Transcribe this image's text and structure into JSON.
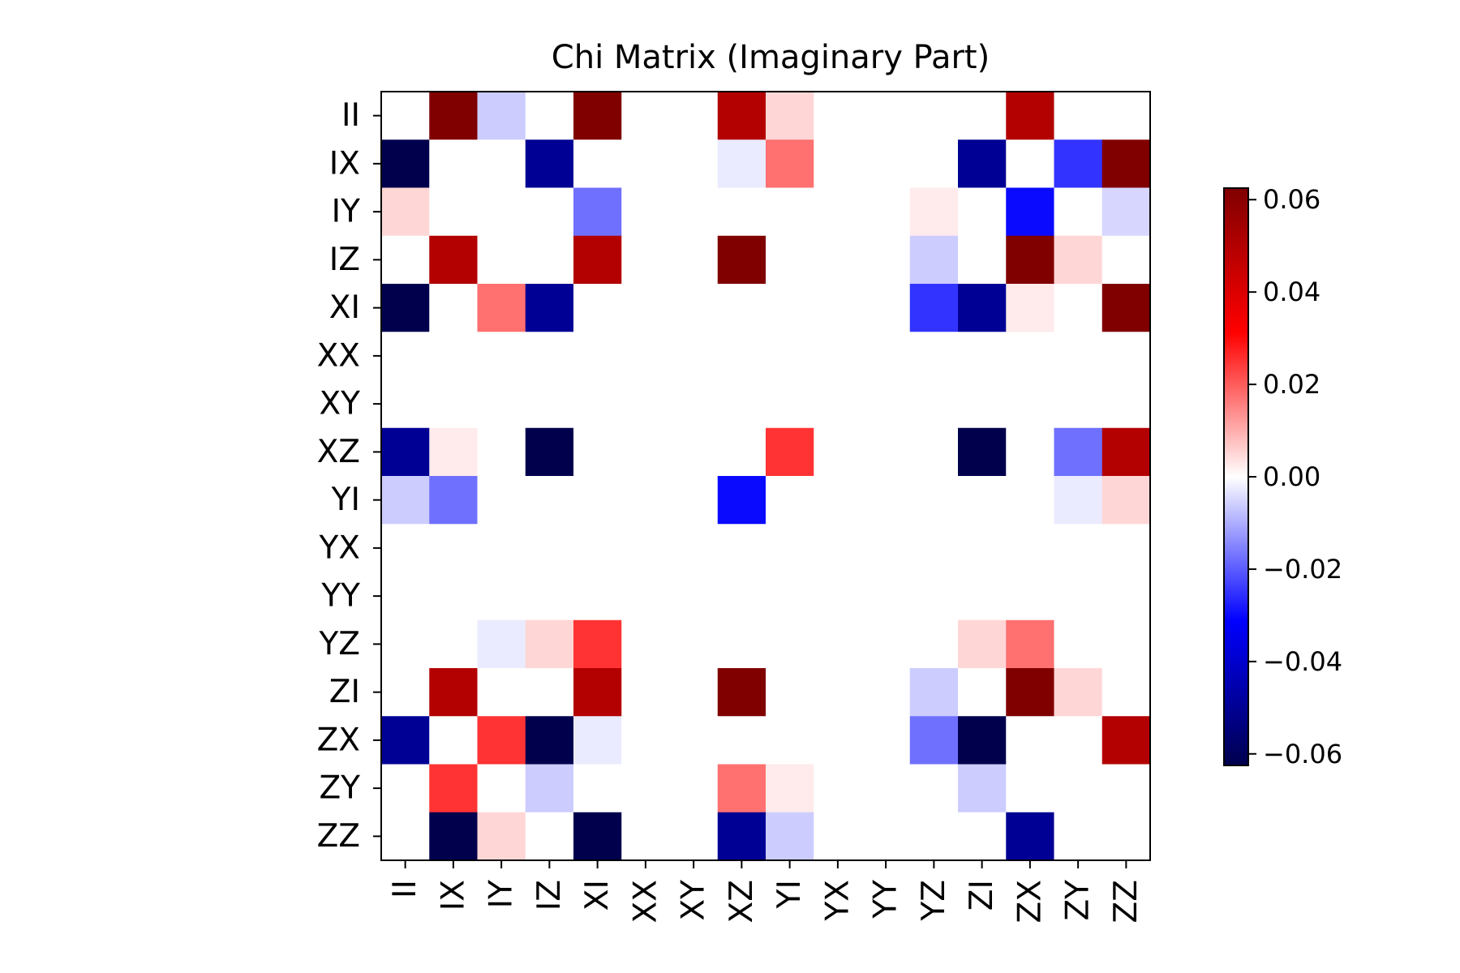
{
  "chart_data": {
    "type": "heatmap",
    "title": "Chi Matrix (Imaginary Part)",
    "xlabel": "",
    "ylabel": "",
    "rows": [
      "II",
      "IX",
      "IY",
      "IZ",
      "XI",
      "XX",
      "XY",
      "XZ",
      "YI",
      "YX",
      "YY",
      "YZ",
      "ZI",
      "ZX",
      "ZY",
      "ZZ"
    ],
    "columns": [
      "II",
      "IX",
      "IY",
      "IZ",
      "XI",
      "XX",
      "XY",
      "XZ",
      "YI",
      "YX",
      "YY",
      "YZ",
      "ZI",
      "ZX",
      "ZY",
      "ZZ"
    ],
    "values": [
      [
        0,
        0.0625,
        -0.0063,
        0,
        0.0625,
        0,
        0,
        0.05,
        0.005,
        0,
        0,
        0,
        0,
        0.05,
        0,
        0
      ],
      [
        -0.0625,
        0,
        0,
        -0.05,
        0,
        0,
        0,
        -0.0025,
        0.0175,
        0,
        0,
        0,
        -0.05,
        0,
        -0.025,
        0.0625
      ],
      [
        0.005,
        0,
        0,
        0,
        -0.0175,
        0,
        0,
        0,
        0,
        0,
        0,
        0.0025,
        0,
        -0.03,
        0,
        -0.005
      ],
      [
        0,
        0.05,
        0,
        0,
        0.05,
        0,
        0,
        0.0625,
        0,
        0,
        0,
        -0.0063,
        0,
        0.0625,
        0.005,
        0
      ],
      [
        -0.0625,
        0,
        0.0175,
        -0.05,
        0,
        0,
        0,
        0,
        0,
        0,
        0,
        -0.025,
        -0.05,
        0.0025,
        0,
        0.0625
      ],
      [
        0,
        0,
        0,
        0,
        0,
        0,
        0,
        0,
        0,
        0,
        0,
        0,
        0,
        0,
        0,
        0
      ],
      [
        0,
        0,
        0,
        0,
        0,
        0,
        0,
        0,
        0,
        0,
        0,
        0,
        0,
        0,
        0,
        0
      ],
      [
        -0.05,
        0.0025,
        0,
        -0.0625,
        0,
        0,
        0,
        0,
        0.025,
        0,
        0,
        0,
        -0.0625,
        0,
        -0.0175,
        0.05
      ],
      [
        -0.0063,
        -0.0175,
        0,
        0,
        0,
        0,
        0,
        -0.03,
        0,
        0,
        0,
        0,
        0,
        0,
        -0.0025,
        0.005
      ],
      [
        0,
        0,
        0,
        0,
        0,
        0,
        0,
        0,
        0,
        0,
        0,
        0,
        0,
        0,
        0,
        0
      ],
      [
        0,
        0,
        0,
        0,
        0,
        0,
        0,
        0,
        0,
        0,
        0,
        0,
        0,
        0,
        0,
        0
      ],
      [
        0,
        0,
        -0.0025,
        0.005,
        0.025,
        0,
        0,
        0,
        0,
        0,
        0,
        0,
        0.005,
        0.0175,
        0,
        0
      ],
      [
        0,
        0.05,
        0,
        0,
        0.05,
        0,
        0,
        0.0625,
        0,
        0,
        0,
        -0.0063,
        0,
        0.0625,
        0.005,
        0
      ],
      [
        -0.05,
        0,
        0.025,
        -0.0625,
        -0.0025,
        0,
        0,
        0,
        0,
        0,
        0,
        -0.0175,
        -0.0625,
        0,
        0,
        0.05
      ],
      [
        0,
        0.025,
        0,
        -0.0063,
        0,
        0,
        0,
        0.0175,
        0.0025,
        0,
        0,
        0,
        -0.0063,
        0,
        0,
        0
      ],
      [
        0,
        -0.0625,
        0.005,
        0,
        -0.0625,
        0,
        0,
        -0.05,
        -0.0063,
        0,
        0,
        0,
        0,
        -0.05,
        0,
        0
      ]
    ],
    "colormap": "seismic",
    "colormap_stops": [
      "#00004d",
      "#0000ff",
      "#ffffff",
      "#ff0000",
      "#800000"
    ],
    "vmin": -0.0625,
    "vmax": 0.0625,
    "colorbar": {
      "placement": "right",
      "ticks": [
        0.06,
        0.04,
        0.02,
        0.0,
        -0.02,
        -0.04,
        -0.06
      ],
      "tick_labels": [
        "0.06",
        "0.04",
        "0.02",
        "0.00",
        "−0.02",
        "−0.04",
        "−0.06"
      ]
    },
    "grid": false
  }
}
